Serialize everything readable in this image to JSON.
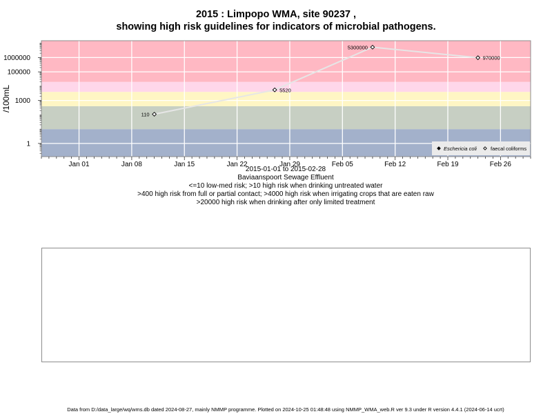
{
  "title_line1": "2015 : Limpopo WMA, site 90237 ,",
  "title_line2": "showing high risk guidelines for indicators of microbial pathogens.",
  "subtitle_lines": [
    "2015-01-01 to 2015-02-28",
    "Baviaanspoort Sewage Effluent",
    "<=10 low-med risk; >10 high risk when drinking untreated water",
    ">400 high risk from full or partial contact; >4000 high risk when irrigating crops that are eaten raw",
    ">20000 high risk when drinking after only limited treatment"
  ],
  "footer": "Data from D:/data_large/wq/wms.db dated 2024-08-27, mainly NMMP programme. Plotted on 2024-10-25 01:48:48 using NMMP_WMA_web.R ver 9.3 under R version 4.4.1 (2024-06-14 ucrt)",
  "chart_data": {
    "type": "scatter",
    "ylabel": "/100mL",
    "yscale": "log",
    "ylim": [
      0.12,
      15000000
    ],
    "xlim": [
      "2014-12-27",
      "2015-03-02"
    ],
    "grid": true,
    "legend_position": "bottom-right",
    "x_ticks": [
      "2015-01-01",
      "2015-01-08",
      "2015-01-15",
      "2015-01-22",
      "2015-01-29",
      "2015-02-05",
      "2015-02-12",
      "2015-02-19",
      "2015-02-26"
    ],
    "x_tick_labels": [
      "Jan 01",
      "Jan 08",
      "Jan 15",
      "Jan 22",
      "Jan 29",
      "Feb 05",
      "Feb 12",
      "Feb 19",
      "Feb 26"
    ],
    "y_ticks": [
      1,
      1000,
      100000,
      1000000
    ],
    "y_tick_labels": [
      "1",
      "1000",
      "100000",
      "1000000"
    ],
    "risk_bands": [
      {
        "from": 0.12,
        "to": 10,
        "color": "#a3b1cb"
      },
      {
        "from": 10,
        "to": 400,
        "color": "#c7cfc3"
      },
      {
        "from": 400,
        "to": 4000,
        "color": "#fff6c4"
      },
      {
        "from": 4000,
        "to": 20000,
        "color": "#ffd7ea"
      },
      {
        "from": 20000,
        "to": 15000000,
        "color": "#ffb8c3"
      }
    ],
    "series": [
      {
        "name": "faecal coliforms",
        "marker": "open-diamond",
        "x": [
          "2015-01-11",
          "2015-01-27",
          "2015-02-09",
          "2015-02-23"
        ],
        "y": [
          110,
          5520,
          5300000,
          970000
        ],
        "labels": [
          "110",
          "5520",
          "5300000",
          "970000"
        ],
        "label_side": [
          "left",
          "right",
          "left",
          "right"
        ]
      }
    ],
    "legend_entries": [
      {
        "label": "Eschericia coli",
        "marker": "filled-diamond",
        "italic": true
      },
      {
        "label": "faecal coliforms",
        "marker": "open-diamond",
        "italic": false
      }
    ]
  }
}
